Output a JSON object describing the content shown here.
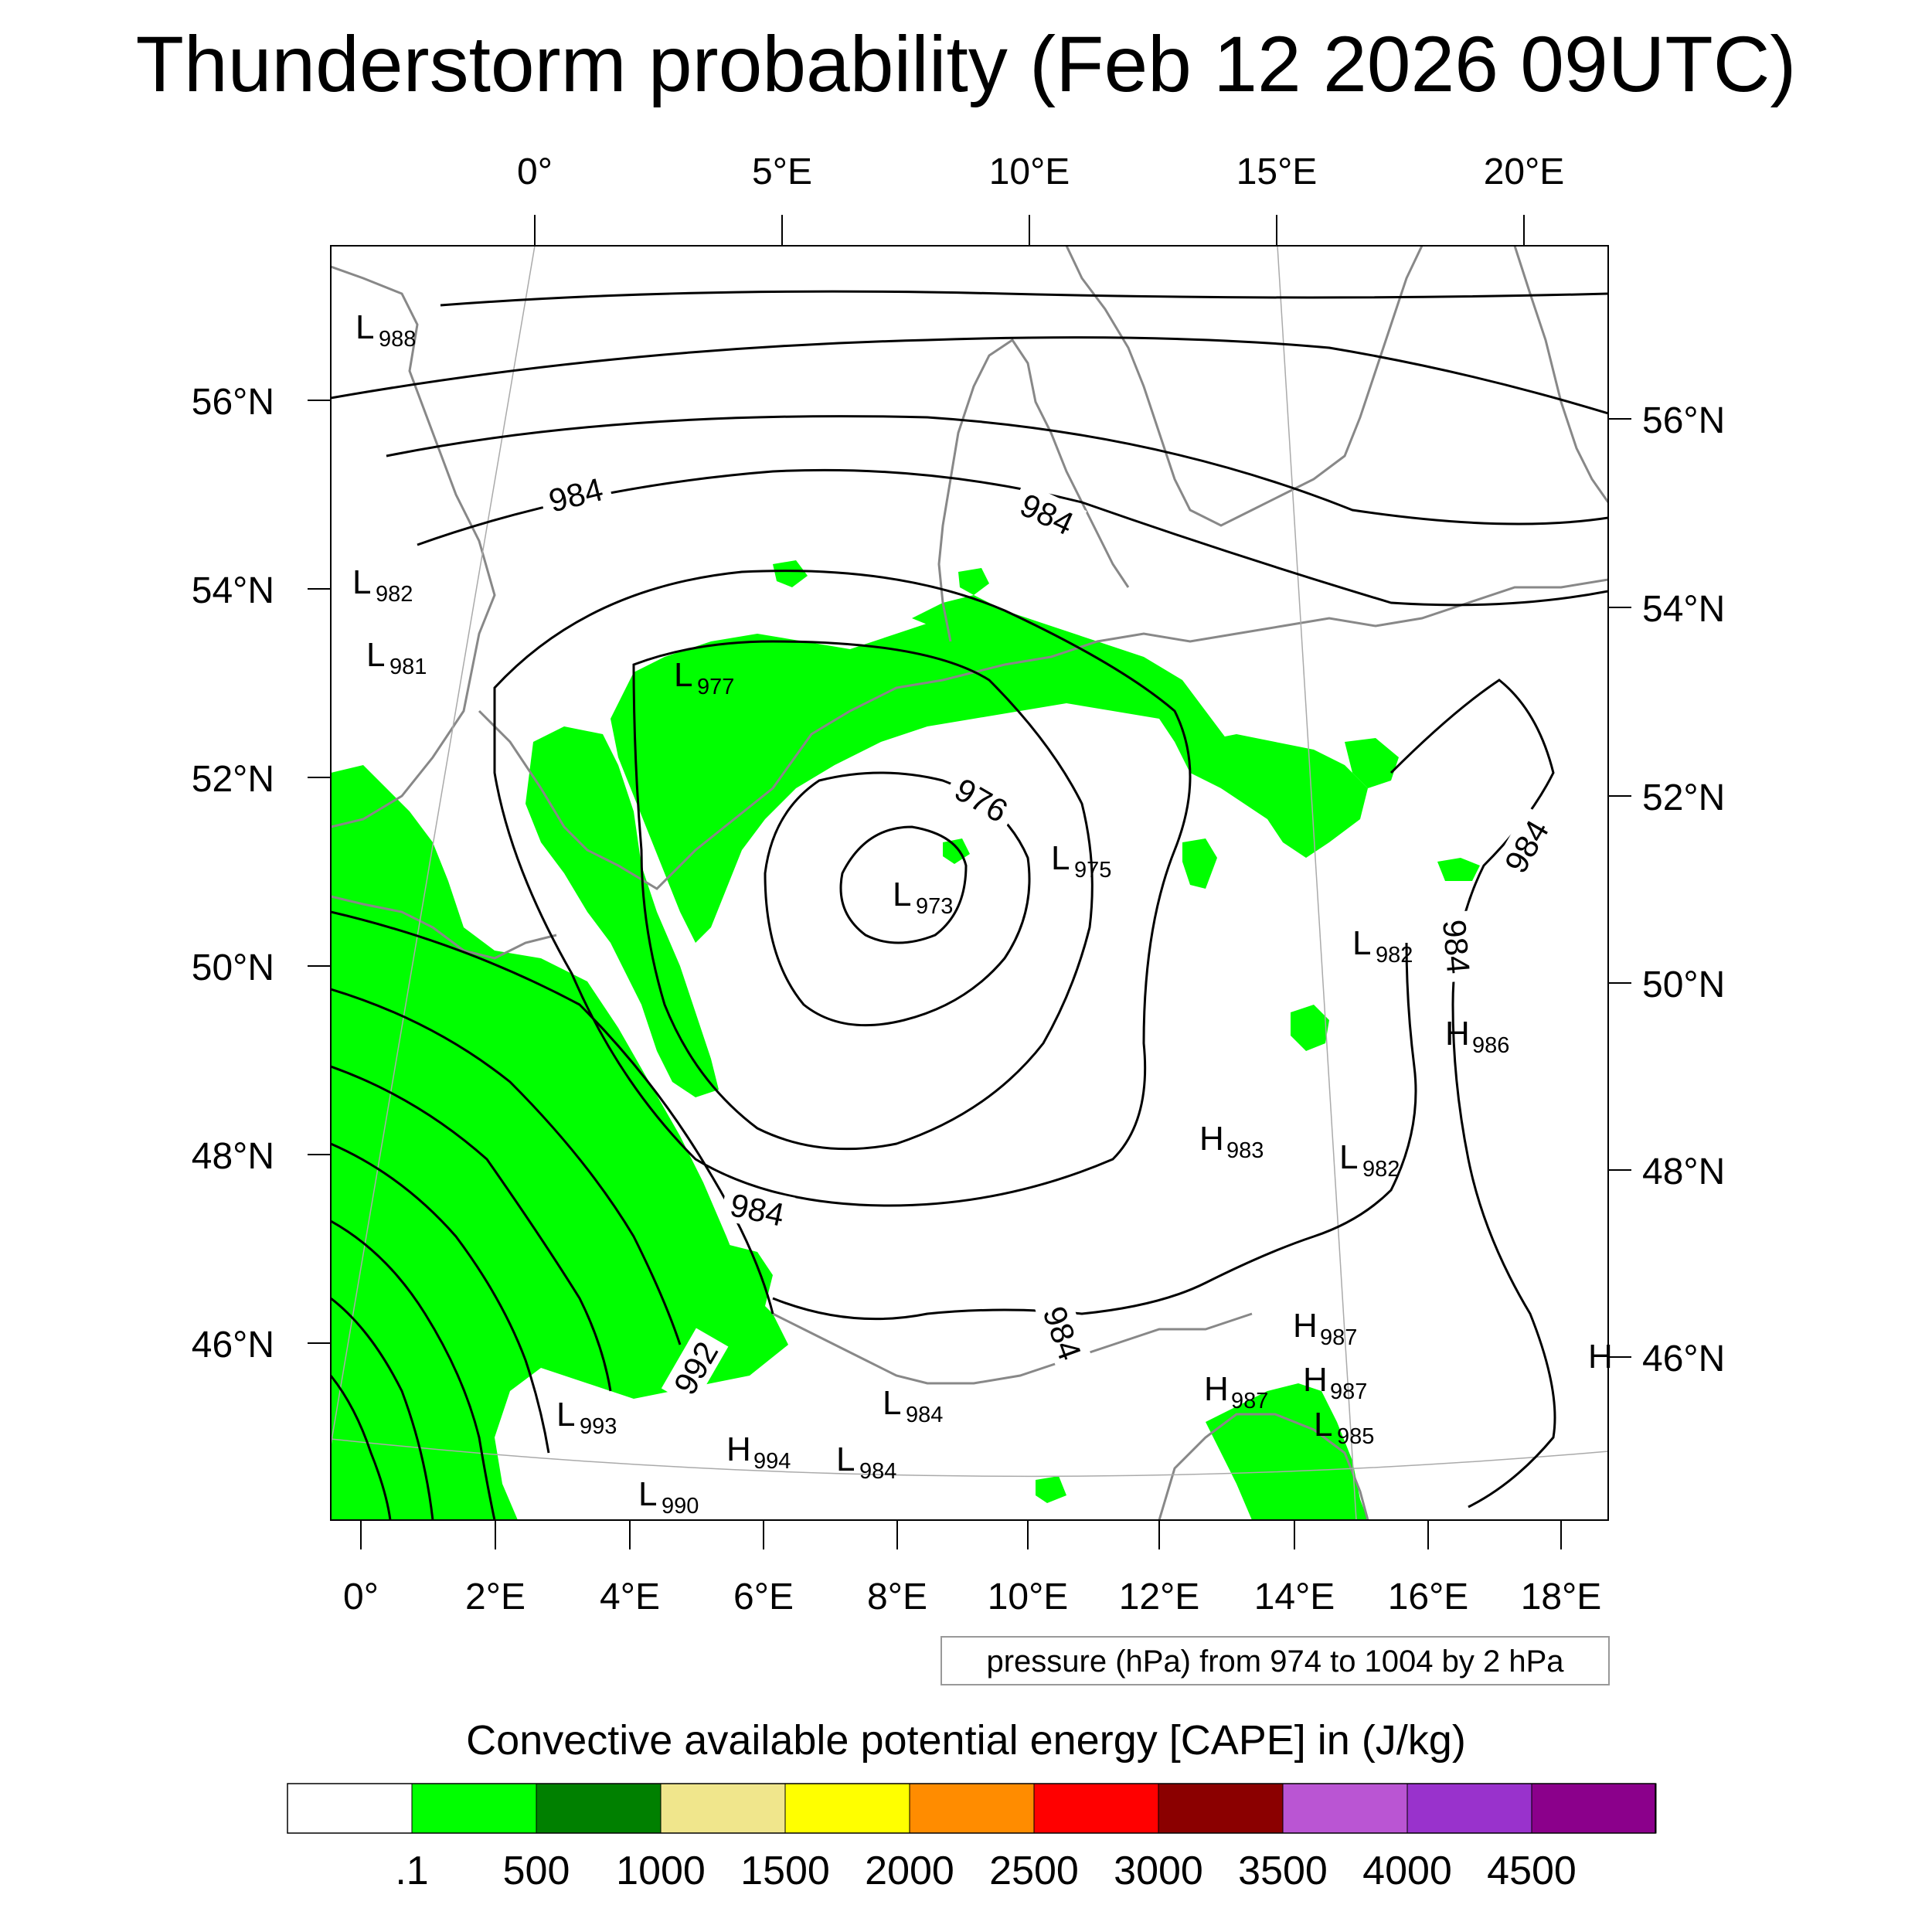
{
  "title": "Thunderstorm probability (Feb 12 2026 09UTC)",
  "top_axis_labels": [
    "0°",
    "5°E",
    "10°E",
    "15°E",
    "20°E"
  ],
  "bottom_axis_labels": [
    "0°",
    "2°E",
    "4°E",
    "6°E",
    "8°E",
    "10°E",
    "12°E",
    "14°E",
    "16°E",
    "18°E"
  ],
  "left_axis_labels": [
    "56°N",
    "54°N",
    "52°N",
    "50°N",
    "48°N",
    "46°N"
  ],
  "right_axis_labels": [
    "56°N",
    "54°N",
    "52°N",
    "50°N",
    "48°N",
    "46°N"
  ],
  "contour_labels": [
    "984",
    "984",
    "976",
    "984",
    "984",
    "984",
    "984",
    "992"
  ],
  "pressure_centers": [
    {
      "type": "L",
      "value": "988"
    },
    {
      "type": "L",
      "value": "982"
    },
    {
      "type": "L",
      "value": "981"
    },
    {
      "type": "L",
      "value": "977"
    },
    {
      "type": "L",
      "value": "973"
    },
    {
      "type": "L",
      "value": "975"
    },
    {
      "type": "L",
      "value": "982"
    },
    {
      "type": "H",
      "value": "986"
    },
    {
      "type": "H",
      "value": "983"
    },
    {
      "type": "L",
      "value": "982"
    },
    {
      "type": "H",
      "value": "987"
    },
    {
      "type": "H",
      "value": "987"
    },
    {
      "type": "H",
      "value": "987"
    },
    {
      "type": "L",
      "value": "985"
    },
    {
      "type": "L",
      "value": "984"
    },
    {
      "type": "L",
      "value": "984"
    },
    {
      "type": "L",
      "value": "993"
    },
    {
      "type": "H",
      "value": "994"
    },
    {
      "type": "L",
      "value": "990"
    },
    {
      "type": "H",
      "value": ""
    }
  ],
  "contour_info": "pressure (hPa) from 974 to 1004 by 2 hPa",
  "colorbar": {
    "title": "Convective available potential energy [CAPE] in (J/kg)",
    "colors": [
      "#ffffff",
      "#00ff00",
      "#008000",
      "#f0e68c",
      "#ffff00",
      "#ff8c00",
      "#ff0000",
      "#8b0000",
      "#ba55d3",
      "#9932cc",
      "#8b008b"
    ],
    "tick_labels": [
      ".1",
      "500",
      "1000",
      "1500",
      "2000",
      "2500",
      "3000",
      "3500",
      "4000",
      "4500"
    ]
  }
}
